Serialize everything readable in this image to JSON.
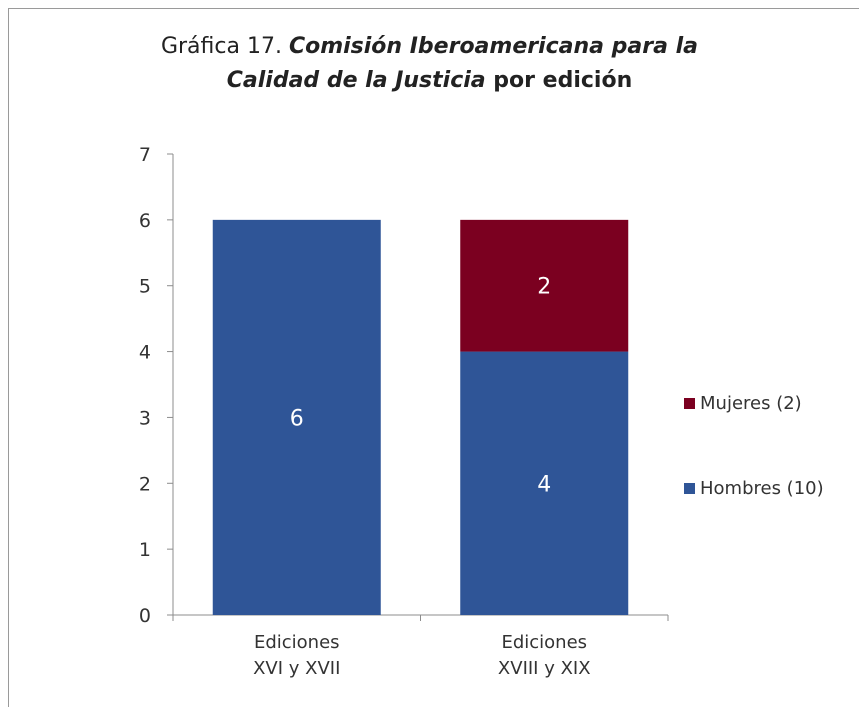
{
  "chart_data": {
    "type": "bar",
    "stacked": true,
    "title_parts": [
      {
        "text": "Gráfica 17. ",
        "style": "plain"
      },
      {
        "text": "Comisión Iberoamericana para la",
        "style": "bi"
      },
      {
        "text": "Calidad de la Justicia",
        "style": "bi",
        "newline": true
      },
      {
        "text": " por edición",
        "style": "b"
      }
    ],
    "categories": [
      [
        "Ediciones",
        "XVI y XVII"
      ],
      [
        "Ediciones",
        "XVIII y XIX"
      ]
    ],
    "series": [
      {
        "name": "Hombres (10)",
        "values": [
          6,
          4
        ],
        "color": "#2f5597",
        "data_labels": [
          "6",
          "4"
        ]
      },
      {
        "name": "Mujeres (2)",
        "values": [
          0,
          2
        ],
        "color": "#7b0020",
        "data_labels": [
          "",
          "2"
        ]
      }
    ],
    "ylim": [
      0,
      7
    ],
    "yticks": [
      "0",
      "1",
      "2",
      "3",
      "4",
      "5",
      "6",
      "7"
    ],
    "legend": [
      {
        "name": "Mujeres (2)",
        "color": "#7b0020"
      },
      {
        "name": "Hombres (10)",
        "color": "#2f5597"
      }
    ],
    "legend_position": "right",
    "grid": false
  }
}
